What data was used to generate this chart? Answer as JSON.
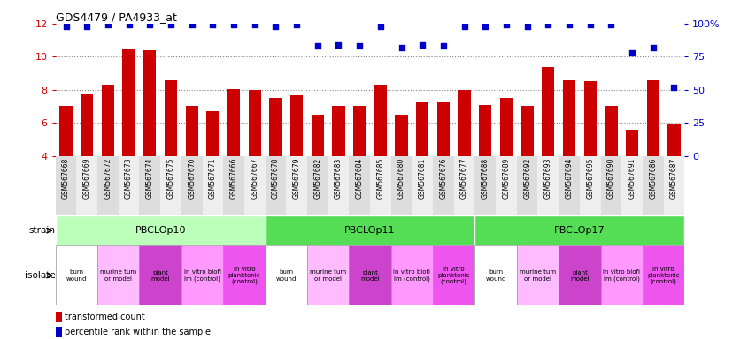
{
  "title": "GDS4479 / PA4933_at",
  "samples": [
    "GSM567668",
    "GSM567669",
    "GSM567672",
    "GSM567673",
    "GSM567674",
    "GSM567675",
    "GSM567670",
    "GSM567671",
    "GSM567666",
    "GSM567667",
    "GSM567678",
    "GSM567679",
    "GSM567682",
    "GSM567683",
    "GSM567684",
    "GSM567685",
    "GSM567680",
    "GSM567681",
    "GSM567676",
    "GSM567677",
    "GSM567688",
    "GSM567689",
    "GSM567692",
    "GSM567693",
    "GSM567694",
    "GSM567695",
    "GSM567690",
    "GSM567691",
    "GSM567686",
    "GSM567687"
  ],
  "bar_values": [
    7.0,
    7.7,
    8.3,
    10.5,
    10.4,
    8.6,
    7.0,
    6.7,
    8.05,
    8.0,
    7.5,
    7.65,
    6.5,
    7.0,
    7.0,
    8.3,
    6.5,
    7.3,
    7.25,
    8.0,
    7.1,
    7.5,
    7.0,
    9.35,
    8.6,
    8.5,
    7.0,
    5.6,
    8.6,
    5.9
  ],
  "percentile_values": [
    98,
    98,
    99,
    99,
    99,
    99,
    99,
    99,
    99,
    99,
    98,
    99,
    83,
    84,
    83,
    98,
    82,
    84,
    83,
    98,
    98,
    99,
    98,
    99,
    99,
    99,
    99,
    78,
    82,
    52
  ],
  "bar_color": "#cc0000",
  "dot_color": "#0000cc",
  "ylim_left": [
    4,
    12
  ],
  "ylim_right": [
    0,
    100
  ],
  "yticks_left": [
    4,
    6,
    8,
    10,
    12
  ],
  "yticks_right": [
    0,
    25,
    50,
    75,
    100
  ],
  "ytick_labels_right": [
    "0",
    "25",
    "50",
    "75",
    "100%"
  ],
  "strains": [
    {
      "label": "PBCLOp10",
      "start": 0,
      "end": 9,
      "color": "#bbffbb"
    },
    {
      "label": "PBCLOp11",
      "start": 10,
      "end": 19,
      "color": "#55dd55"
    },
    {
      "label": "PBCLOp17",
      "start": 20,
      "end": 29,
      "color": "#55dd55"
    }
  ],
  "isolate_groups": [
    {
      "label": "burn\nwound",
      "start": 0,
      "end": 1,
      "color": "#ffffff"
    },
    {
      "label": "murine tum\nor model",
      "start": 2,
      "end": 3,
      "color": "#ffbbff"
    },
    {
      "label": "plant\nmodel",
      "start": 4,
      "end": 5,
      "color": "#cc44cc"
    },
    {
      "label": "in vitro biofi\nlm (control)",
      "start": 6,
      "end": 7,
      "color": "#ff99ff"
    },
    {
      "label": "in vitro\nplanktonic\n(control)",
      "start": 8,
      "end": 9,
      "color": "#ee55ee"
    },
    {
      "label": "burn\nwound",
      "start": 10,
      "end": 11,
      "color": "#ffffff"
    },
    {
      "label": "murine tum\nor model",
      "start": 12,
      "end": 13,
      "color": "#ffbbff"
    },
    {
      "label": "plant\nmodel",
      "start": 14,
      "end": 15,
      "color": "#cc44cc"
    },
    {
      "label": "in vitro biofi\nlm (control)",
      "start": 16,
      "end": 17,
      "color": "#ff99ff"
    },
    {
      "label": "in vitro\nplanktonic\n(control)",
      "start": 18,
      "end": 19,
      "color": "#ee55ee"
    },
    {
      "label": "burn\nwound",
      "start": 20,
      "end": 21,
      "color": "#ffffff"
    },
    {
      "label": "murine tum\nor model",
      "start": 22,
      "end": 23,
      "color": "#ffbbff"
    },
    {
      "label": "plant\nmodel",
      "start": 24,
      "end": 25,
      "color": "#cc44cc"
    },
    {
      "label": "in vitro biofi\nlm (control)",
      "start": 26,
      "end": 27,
      "color": "#ff99ff"
    },
    {
      "label": "in vitro\nplanktonic\n(control)",
      "start": 28,
      "end": 29,
      "color": "#ee55ee"
    }
  ],
  "legend_items": [
    {
      "label": "transformed count",
      "color": "#cc0000"
    },
    {
      "label": "percentile rank within the sample",
      "color": "#0000cc"
    }
  ],
  "background_color": "#ffffff",
  "grid_color": "#888888",
  "xtick_bg_even": "#dddddd",
  "xtick_bg_odd": "#eeeeee"
}
